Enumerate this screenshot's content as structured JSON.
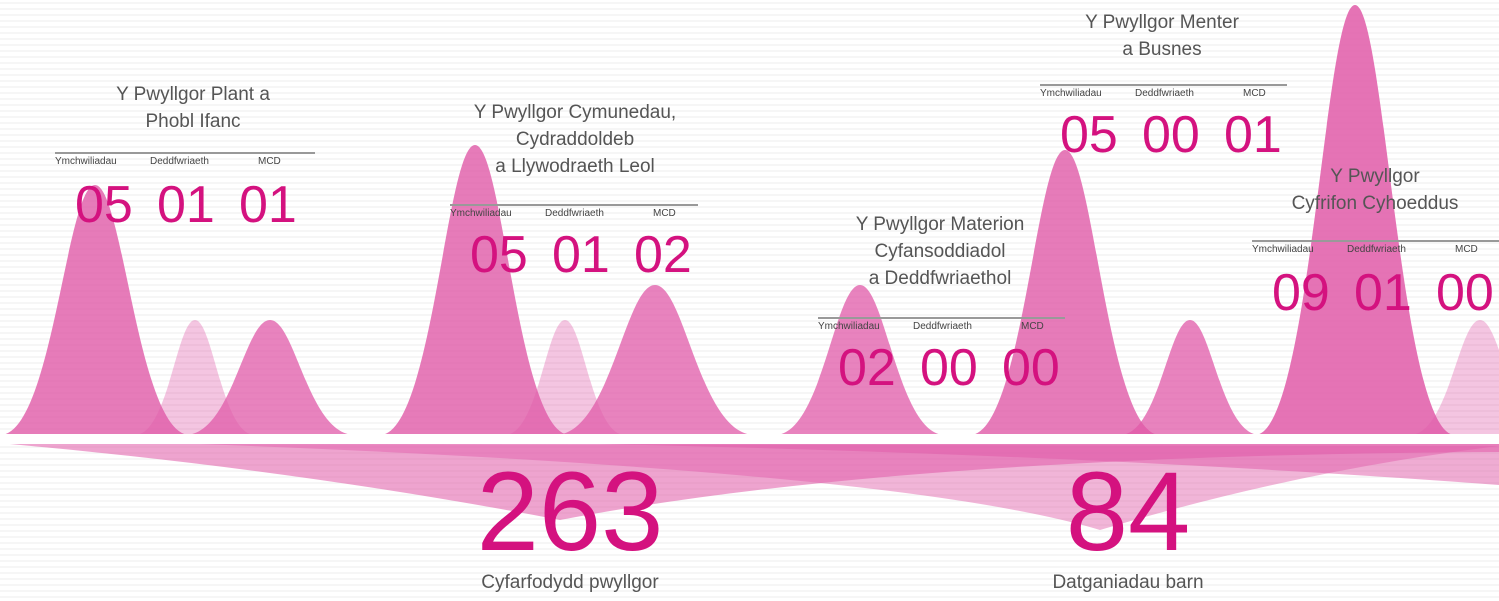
{
  "committees": [
    {
      "title": [
        "Y Pwyllgor Plant a",
        "Phobl Ifanc"
      ],
      "labels": [
        "Ymchwiliadau",
        "Deddfwriaeth",
        "MCD"
      ],
      "counts": [
        "05",
        "01",
        "01"
      ]
    },
    {
      "title": [
        "Y Pwyllgor Cymunedau,",
        "Cydraddoldeb",
        "a Llywodraeth Leol"
      ],
      "labels": [
        "Ymchwiliadau",
        "Deddfwriaeth",
        "MCD"
      ],
      "counts": [
        "05",
        "01",
        "02"
      ]
    },
    {
      "title": [
        "Y Pwyllgor Materion",
        "Cyfansoddiadol",
        "a Deddfwriaethol"
      ],
      "labels": [
        "Ymchwiliadau",
        "Deddfwriaeth",
        "MCD"
      ],
      "counts": [
        "02",
        "00",
        "00"
      ]
    },
    {
      "title": [
        "Y Pwyllgor Menter",
        "a Busnes"
      ],
      "labels": [
        "Ymchwiliadau",
        "Deddfwriaeth",
        "MCD"
      ],
      "counts": [
        "05",
        "00",
        "01"
      ]
    },
    {
      "title": [
        "Y Pwyllgor",
        "Cyfrifon Cyhoeddus"
      ],
      "labels": [
        "Ymchwiliadau",
        "Deddfwriaeth",
        "MCD"
      ],
      "counts": [
        "09",
        "01",
        "00"
      ]
    }
  ],
  "stats": [
    {
      "value": 263,
      "caption": "Cyfarfodydd pwyllgor"
    },
    {
      "value": 84,
      "caption": "Datganiadau barn"
    }
  ]
}
